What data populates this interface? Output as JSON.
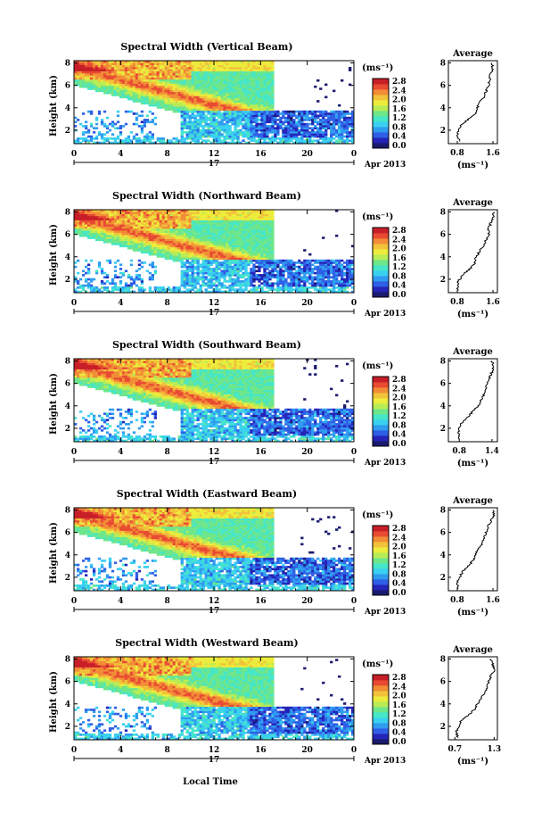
{
  "figure": {
    "xlabel_bottom": "Local Time",
    "date_label": "Apr 2013",
    "day_label": "17"
  },
  "colors": {
    "cmap": [
      "#1a1a6e",
      "#2424b8",
      "#2f5fe6",
      "#2f9cf0",
      "#3ad0f0",
      "#46e6c8",
      "#6ee68a",
      "#b8ec55",
      "#ecec3c",
      "#f2c23a",
      "#f28c36",
      "#e84a32",
      "#c81e28"
    ]
  },
  "chart_data": [
    {
      "type": "heatmap",
      "title": "Spectral Width (Vertical Beam)",
      "ylabel": "Height (km)",
      "x_ticks": [
        "0",
        "4",
        "8",
        "12",
        "16",
        "20",
        "0"
      ],
      "y_ticks": [
        "2",
        "4",
        "6",
        "8"
      ],
      "ylim": [
        0.8,
        8.2
      ],
      "xlim": [
        0,
        24
      ],
      "colorbar": {
        "unit": "(ms⁻¹)",
        "ticks": [
          "0.0",
          "0.4",
          "0.8",
          "1.2",
          "1.6",
          "2.0",
          "2.4",
          "2.8"
        ]
      },
      "avg_profile": {
        "title": "Average",
        "xlabel": "(ms⁻¹)",
        "x_ticks": [
          "0.8",
          "1.6"
        ],
        "xlim": [
          0.6,
          1.7
        ],
        "y_ticks": [
          "2",
          "4",
          "6",
          "8"
        ],
        "heights": [
          1.0,
          1.5,
          2.0,
          2.5,
          3.0,
          3.5,
          4.0,
          4.5,
          5.0,
          5.5,
          6.0,
          6.5,
          7.0,
          7.5,
          8.0
        ],
        "values": [
          0.85,
          0.8,
          0.82,
          0.9,
          1.05,
          1.2,
          1.25,
          1.3,
          1.4,
          1.45,
          1.5,
          1.52,
          1.55,
          1.6,
          1.58
        ]
      }
    },
    {
      "type": "heatmap",
      "title": "Spectral Width (Northward Beam)",
      "ylabel": "Height (km)",
      "x_ticks": [
        "0",
        "4",
        "8",
        "12",
        "16",
        "20",
        "0"
      ],
      "y_ticks": [
        "2",
        "4",
        "6",
        "8"
      ],
      "ylim": [
        0.8,
        8.2
      ],
      "xlim": [
        0,
        24
      ],
      "colorbar": {
        "unit": "(ms⁻¹)",
        "ticks": [
          "0.0",
          "0.4",
          "0.8",
          "1.2",
          "1.6",
          "2.0",
          "2.4",
          "2.8"
        ]
      },
      "avg_profile": {
        "title": "Average",
        "xlabel": "(ms⁻¹)",
        "x_ticks": [
          "0.8",
          "1.6"
        ],
        "xlim": [
          0.6,
          1.7
        ],
        "y_ticks": [
          "2",
          "4",
          "6",
          "8"
        ],
        "heights": [
          1.0,
          1.5,
          2.0,
          2.5,
          3.0,
          3.5,
          4.0,
          4.5,
          5.0,
          5.5,
          6.0,
          6.5,
          7.0,
          7.5,
          8.0
        ],
        "values": [
          0.82,
          0.8,
          0.85,
          0.95,
          1.1,
          1.2,
          1.22,
          1.3,
          1.38,
          1.45,
          1.5,
          1.5,
          1.55,
          1.6,
          1.62
        ]
      }
    },
    {
      "type": "heatmap",
      "title": "Spectral Width (Southward Beam)",
      "ylabel": "Height (km)",
      "x_ticks": [
        "0",
        "4",
        "8",
        "12",
        "16",
        "20",
        "0"
      ],
      "y_ticks": [
        "2",
        "4",
        "6",
        "8"
      ],
      "ylim": [
        0.8,
        8.2
      ],
      "xlim": [
        0,
        24
      ],
      "colorbar": {
        "unit": "(ms⁻¹)",
        "ticks": [
          "0.0",
          "0.4",
          "0.8",
          "1.2",
          "1.6",
          "2.0",
          "2.4",
          "2.8"
        ]
      },
      "avg_profile": {
        "title": "Average",
        "xlabel": "(ms⁻¹)",
        "x_ticks": [
          "0.8",
          "1.4"
        ],
        "xlim": [
          0.6,
          1.5
        ],
        "y_ticks": [
          "2",
          "4",
          "6",
          "8"
        ],
        "heights": [
          1.0,
          1.5,
          2.0,
          2.5,
          3.0,
          3.5,
          4.0,
          4.5,
          5.0,
          5.5,
          6.0,
          6.5,
          7.0,
          7.5,
          8.0
        ],
        "values": [
          0.8,
          0.78,
          0.8,
          0.85,
          0.95,
          1.05,
          1.15,
          1.2,
          1.25,
          1.3,
          1.3,
          1.35,
          1.4,
          1.42,
          1.4
        ]
      }
    },
    {
      "type": "heatmap",
      "title": "Spectral Width (Eastward Beam)",
      "ylabel": "Height (km)",
      "x_ticks": [
        "0",
        "4",
        "8",
        "12",
        "16",
        "20",
        "0"
      ],
      "y_ticks": [
        "2",
        "4",
        "6",
        "8"
      ],
      "ylim": [
        0.8,
        8.2
      ],
      "xlim": [
        0,
        24
      ],
      "colorbar": {
        "unit": "(ms⁻¹)",
        "ticks": [
          "0.0",
          "0.4",
          "0.8",
          "1.2",
          "1.6",
          "2.0",
          "2.4",
          "2.8"
        ]
      },
      "avg_profile": {
        "title": "Average",
        "xlabel": "(ms⁻¹)",
        "x_ticks": [
          "0.8",
          "1.6"
        ],
        "xlim": [
          0.6,
          1.7
        ],
        "y_ticks": [
          "2",
          "4",
          "6",
          "8"
        ],
        "heights": [
          1.0,
          1.5,
          2.0,
          2.5,
          3.0,
          3.5,
          4.0,
          4.5,
          5.0,
          5.5,
          6.0,
          6.5,
          7.0,
          7.5,
          8.0
        ],
        "values": [
          0.82,
          0.8,
          0.85,
          0.92,
          1.05,
          1.15,
          1.2,
          1.28,
          1.35,
          1.4,
          1.45,
          1.48,
          1.55,
          1.62,
          1.6
        ]
      }
    },
    {
      "type": "heatmap",
      "title": "Spectral Width (Westward Beam)",
      "ylabel": "Height (km)",
      "x_ticks": [
        "0",
        "4",
        "8",
        "12",
        "16",
        "20",
        "0"
      ],
      "y_ticks": [
        "2",
        "4",
        "6",
        "8"
      ],
      "ylim": [
        0.8,
        8.2
      ],
      "xlim": [
        0,
        24
      ],
      "colorbar": {
        "unit": "(ms⁻¹)",
        "ticks": [
          "0.0",
          "0.4",
          "0.8",
          "1.2",
          "1.6",
          "2.0",
          "2.4",
          "2.8"
        ]
      },
      "avg_profile": {
        "title": "Average",
        "xlabel": "(ms⁻¹)",
        "x_ticks": [
          "0.7",
          "1.3"
        ],
        "xlim": [
          0.6,
          1.35
        ],
        "y_ticks": [
          "2",
          "4",
          "6",
          "8"
        ],
        "heights": [
          1.0,
          1.5,
          2.0,
          2.5,
          3.0,
          3.5,
          4.0,
          4.5,
          5.0,
          5.5,
          6.0,
          6.5,
          7.0,
          7.5,
          8.0
        ],
        "values": [
          0.75,
          0.72,
          0.76,
          0.8,
          0.9,
          1.0,
          1.05,
          1.1,
          1.15,
          1.2,
          1.22,
          1.25,
          1.3,
          1.28,
          1.25
        ]
      }
    }
  ]
}
